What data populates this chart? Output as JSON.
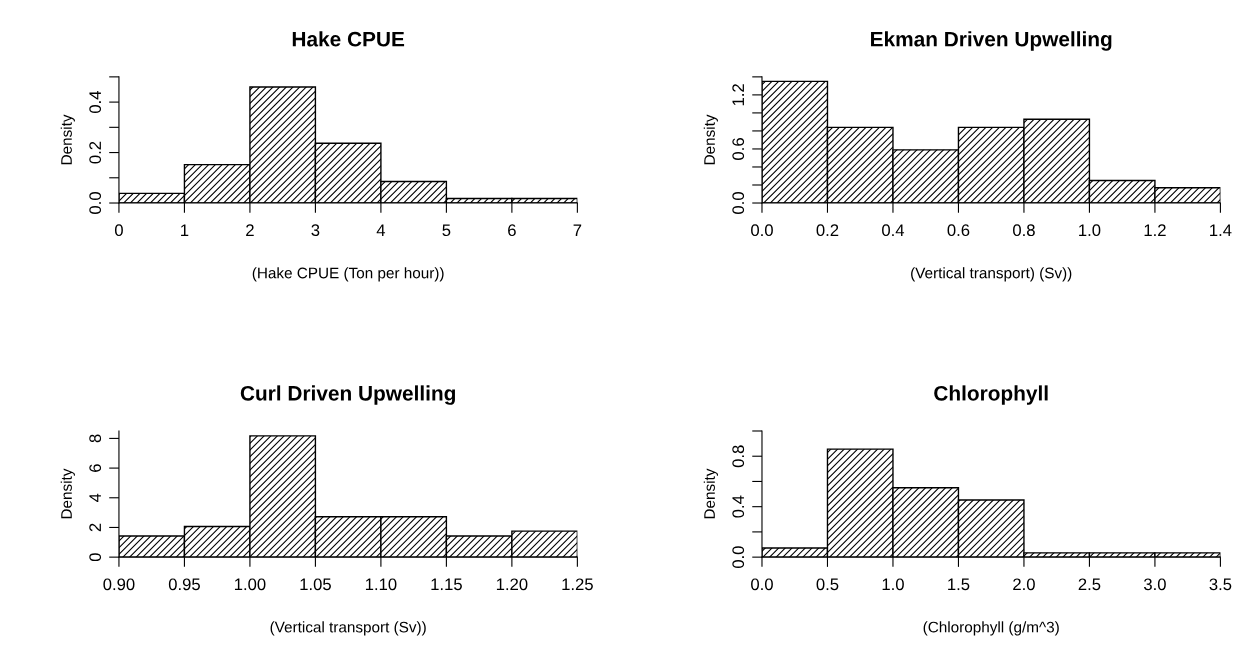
{
  "chart_data": [
    {
      "type": "histogram",
      "title": "Hake CPUE",
      "xlabel": "(Hake CPUE (Ton per hour))",
      "ylabel": "Density",
      "color": "#000000",
      "bins": [
        0,
        1,
        2,
        3,
        4,
        5,
        6,
        7
      ],
      "values": [
        0.038,
        0.152,
        0.46,
        0.237,
        0.085,
        0.018,
        0.018
      ],
      "xlim": [
        0,
        7
      ],
      "xticks": [
        0,
        1,
        2,
        3,
        4,
        5,
        6,
        7
      ],
      "ylim": [
        0,
        0.5
      ],
      "yticks": [
        {
          "value": 0,
          "label": "0.0"
        },
        {
          "value": 0.1,
          "label": null
        },
        0.2,
        {
          "value": 0.3,
          "label": null
        },
        0.4,
        {
          "value": 0.5,
          "label": null
        }
      ],
      "grid": false,
      "legend": false
    },
    {
      "type": "histogram",
      "title": "Ekman Driven Upwelling",
      "xlabel": "(Vertical transport) (Sv))",
      "ylabel": "Density",
      "color": "#000000",
      "bins": [
        0,
        0.2,
        0.4,
        0.6,
        0.8,
        1.0,
        1.2,
        1.4
      ],
      "values": [
        1.35,
        0.84,
        0.59,
        0.84,
        0.93,
        0.25,
        0.17
      ],
      "xlim": [
        0,
        1.4
      ],
      "xticks": [
        {
          "value": 0,
          "label": "0.0"
        },
        0.2,
        0.4,
        0.6,
        0.8,
        {
          "value": 1.0,
          "label": "1.0"
        },
        1.2,
        1.4
      ],
      "ylim": [
        0,
        1.4
      ],
      "yticks": [
        {
          "value": 0,
          "label": "0.0"
        },
        {
          "value": 0.2,
          "label": null
        },
        {
          "value": 0.4,
          "label": null
        },
        0.6,
        {
          "value": 0.8,
          "label": null
        },
        {
          "value": 1.0,
          "label": null
        },
        1.2,
        {
          "value": 1.4,
          "label": null
        }
      ],
      "grid": false,
      "legend": false
    },
    {
      "type": "histogram",
      "title": "Curl Driven Upwelling",
      "xlabel": "(Vertical transport (Sv))",
      "ylabel": "Density",
      "color": "#000000",
      "bins": [
        0.9,
        0.95,
        1.0,
        1.05,
        1.1,
        1.15,
        1.2,
        1.25
      ],
      "values": [
        1.42,
        2.06,
        8.17,
        2.72,
        2.72,
        1.42,
        1.75
      ],
      "xlim": [
        0.9,
        1.25
      ],
      "xticks": [
        {
          "value": 0.9,
          "label": "0.90"
        },
        0.95,
        {
          "value": 1.0,
          "label": "1.00"
        },
        1.05,
        {
          "value": 1.1,
          "label": "1.10"
        },
        1.15,
        {
          "value": 1.2,
          "label": "1.20"
        },
        1.25
      ],
      "ylim": [
        0,
        8.5
      ],
      "yticks": [
        0,
        2,
        4,
        6,
        8
      ],
      "grid": false,
      "legend": false
    },
    {
      "type": "histogram",
      "title": "Chlorophyll",
      "xlabel": "(Chlorophyll (g/m^3)",
      "ylabel": "Density",
      "color": "#000000",
      "bins": [
        0,
        0.5,
        1.0,
        1.5,
        2.0,
        2.5,
        3.0,
        3.5
      ],
      "values": [
        0.072,
        0.856,
        0.55,
        0.453,
        0.034,
        0.034,
        0.034
      ],
      "xlim": [
        0,
        3.5
      ],
      "xticks": [
        {
          "value": 0,
          "label": "0.0"
        },
        0.5,
        {
          "value": 1.0,
          "label": "1.0"
        },
        1.5,
        {
          "value": 2.0,
          "label": "2.0"
        },
        2.5,
        {
          "value": 3.0,
          "label": "3.0"
        },
        3.5
      ],
      "ylim": [
        0,
        1.0
      ],
      "yticks": [
        {
          "value": 0,
          "label": "0.0"
        },
        {
          "value": 0.2,
          "label": null
        },
        0.4,
        {
          "value": 0.6,
          "label": null
        },
        0.8,
        {
          "value": 1.0,
          "label": null
        }
      ],
      "grid": false,
      "legend": false
    }
  ]
}
